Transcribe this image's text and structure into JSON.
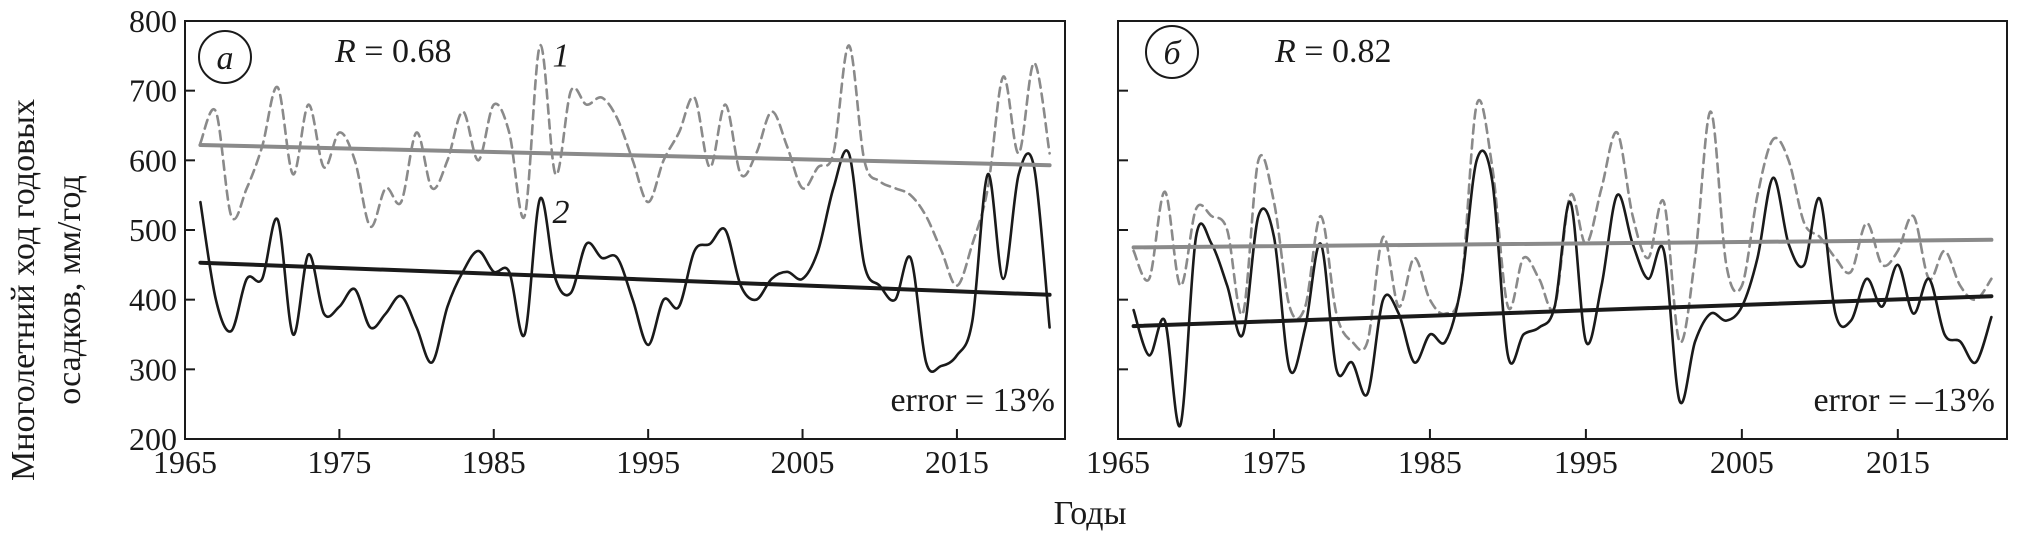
{
  "figure": {
    "ylabel_line1": "Многолетний ход годовых",
    "ylabel_line2": "осадков, мм/год",
    "xlabel": "Годы"
  },
  "chart_data": [
    {
      "type": "line",
      "panel_label": "а",
      "r_prefix": "R",
      "r_value": " = 0.68",
      "error_label": "error = 13%",
      "xlim": [
        1965,
        2022
      ],
      "ylim": [
        200,
        800
      ],
      "xticks": [
        1965,
        1975,
        1985,
        1995,
        2005,
        2015
      ],
      "yticks": [
        200,
        300,
        400,
        500,
        600,
        700,
        800
      ],
      "series": [
        {
          "label": "1",
          "style": "dashed",
          "color": "#8a8a8a",
          "x": [
            1966,
            1967,
            1968,
            1969,
            1970,
            1971,
            1972,
            1973,
            1974,
            1975,
            1976,
            1977,
            1978,
            1979,
            1980,
            1981,
            1982,
            1983,
            1984,
            1985,
            1986,
            1987,
            1988,
            1989,
            1990,
            1991,
            1992,
            1993,
            1994,
            1995,
            1996,
            1997,
            1998,
            1999,
            2000,
            2001,
            2002,
            2003,
            2004,
            2005,
            2006,
            2007,
            2008,
            2009,
            2010,
            2011,
            2012,
            2013,
            2014,
            2015,
            2016,
            2017,
            2018,
            2019,
            2020,
            2021
          ],
          "y": [
            625,
            670,
            520,
            560,
            620,
            705,
            580,
            680,
            590,
            640,
            600,
            505,
            560,
            540,
            640,
            560,
            600,
            670,
            600,
            680,
            640,
            520,
            765,
            580,
            700,
            680,
            690,
            660,
            600,
            540,
            600,
            640,
            690,
            590,
            680,
            580,
            610,
            670,
            620,
            560,
            590,
            610,
            765,
            600,
            570,
            560,
            550,
            520,
            470,
            420,
            480,
            560,
            720,
            610,
            740,
            610
          ]
        },
        {
          "label": "2",
          "style": "solid",
          "color": "#1a1a1a",
          "x": [
            1966,
            1967,
            1968,
            1969,
            1970,
            1971,
            1972,
            1973,
            1974,
            1975,
            1976,
            1977,
            1978,
            1979,
            1980,
            1981,
            1982,
            1983,
            1984,
            1985,
            1986,
            1987,
            1988,
            1989,
            1990,
            1991,
            1992,
            1993,
            1994,
            1995,
            1996,
            1997,
            1998,
            1999,
            2000,
            2001,
            2002,
            2003,
            2004,
            2005,
            2006,
            2007,
            2008,
            2009,
            2010,
            2011,
            2012,
            2013,
            2014,
            2015,
            2016,
            2017,
            2018,
            2019,
            2020,
            2021
          ],
          "y": [
            540,
            400,
            355,
            430,
            430,
            515,
            350,
            465,
            380,
            390,
            415,
            360,
            380,
            405,
            360,
            310,
            390,
            440,
            470,
            440,
            440,
            350,
            545,
            430,
            410,
            480,
            460,
            460,
            400,
            335,
            400,
            390,
            470,
            480,
            500,
            420,
            400,
            430,
            440,
            430,
            470,
            560,
            610,
            450,
            420,
            400,
            460,
            310,
            305,
            320,
            370,
            580,
            430,
            580,
            590,
            360
          ]
        },
        {
          "label": "trend-1",
          "style": "solid",
          "color": "#8a8a8a",
          "x": [
            1966,
            2021
          ],
          "y": [
            622,
            593
          ]
        },
        {
          "label": "trend-2",
          "style": "solid",
          "color": "#1a1a1a",
          "x": [
            1966,
            2021
          ],
          "y": [
            453,
            407
          ]
        }
      ],
      "series_labels": [
        {
          "text": "1",
          "x": 1988.8,
          "y": 735
        },
        {
          "text": "2",
          "x": 1988.8,
          "y": 510
        }
      ]
    },
    {
      "type": "line",
      "panel_label": "б",
      "r_prefix": "R",
      "r_value": " = 0.82",
      "error_label": "error = –13%",
      "xlim": [
        1965,
        2022
      ],
      "ylim": [
        200,
        800
      ],
      "xticks": [
        1965,
        1975,
        1985,
        1995,
        2005,
        2015
      ],
      "yticks": [
        200,
        300,
        400,
        500,
        600,
        700,
        800
      ],
      "series": [
        {
          "label": "1",
          "style": "dashed",
          "color": "#8a8a8a",
          "x": [
            1966,
            1967,
            1968,
            1969,
            1970,
            1971,
            1972,
            1973,
            1974,
            1975,
            1976,
            1977,
            1978,
            1979,
            1980,
            1981,
            1982,
            1983,
            1984,
            1985,
            1986,
            1987,
            1988,
            1989,
            1990,
            1991,
            1992,
            1993,
            1994,
            1995,
            1996,
            1997,
            1998,
            1999,
            2000,
            2001,
            2002,
            2003,
            2004,
            2005,
            2006,
            2007,
            2008,
            2009,
            2010,
            2011,
            2012,
            2013,
            2014,
            2015,
            2016,
            2017,
            2018,
            2019,
            2020,
            2021
          ],
          "y": [
            470,
            430,
            555,
            420,
            530,
            520,
            500,
            380,
            600,
            540,
            390,
            390,
            520,
            380,
            340,
            340,
            490,
            390,
            460,
            400,
            380,
            420,
            680,
            590,
            390,
            460,
            430,
            390,
            550,
            480,
            560,
            640,
            520,
            460,
            540,
            340,
            460,
            670,
            450,
            420,
            550,
            630,
            600,
            510,
            490,
            460,
            440,
            510,
            450,
            470,
            520,
            430,
            470,
            420,
            400,
            430
          ]
        },
        {
          "label": "2",
          "style": "solid",
          "color": "#1a1a1a",
          "x": [
            1966,
            1967,
            1968,
            1969,
            1970,
            1971,
            1972,
            1973,
            1974,
            1975,
            1976,
            1977,
            1978,
            1979,
            1980,
            1981,
            1982,
            1983,
            1984,
            1985,
            1986,
            1987,
            1988,
            1989,
            1990,
            1991,
            1992,
            1993,
            1994,
            1995,
            1996,
            1997,
            1998,
            1999,
            2000,
            2001,
            2002,
            2003,
            2004,
            2005,
            2006,
            2007,
            2008,
            2009,
            2010,
            2011,
            2012,
            2013,
            2014,
            2015,
            2016,
            2017,
            2018,
            2019,
            2020,
            2021
          ],
          "y": [
            385,
            320,
            370,
            220,
            490,
            480,
            420,
            350,
            520,
            490,
            300,
            360,
            480,
            300,
            310,
            265,
            400,
            380,
            310,
            350,
            340,
            420,
            600,
            570,
            320,
            350,
            360,
            390,
            540,
            340,
            420,
            550,
            480,
            430,
            470,
            255,
            340,
            380,
            370,
            390,
            460,
            575,
            480,
            450,
            545,
            380,
            370,
            430,
            390,
            450,
            380,
            430,
            350,
            340,
            310,
            375
          ]
        },
        {
          "label": "trend-1",
          "style": "solid",
          "color": "#8a8a8a",
          "x": [
            1966,
            2021
          ],
          "y": [
            475,
            486
          ]
        },
        {
          "label": "trend-2",
          "style": "solid",
          "color": "#1a1a1a",
          "x": [
            1966,
            2021
          ],
          "y": [
            362,
            405
          ]
        }
      ]
    }
  ]
}
